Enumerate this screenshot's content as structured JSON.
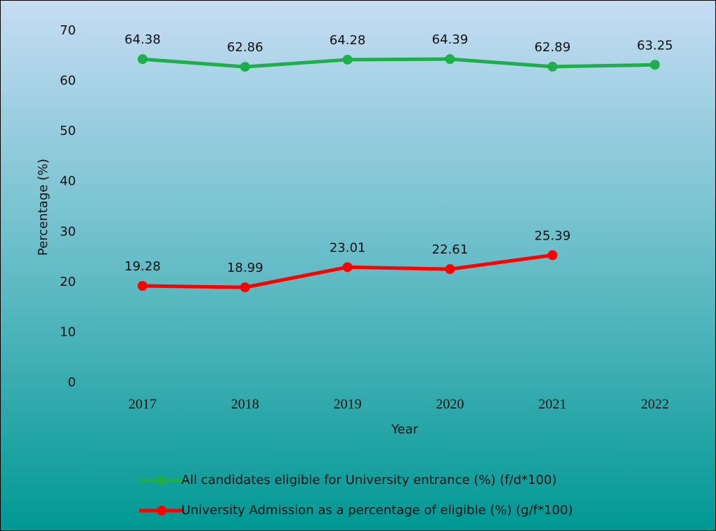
{
  "chart_data": {
    "type": "line",
    "categories": [
      "2017",
      "2018",
      "2019",
      "2020",
      "2021",
      "2022"
    ],
    "series": [
      {
        "name": "All candidates eligible for University entrance (%) (f/d*100)",
        "color": "#1fae4b",
        "values": [
          64.38,
          62.86,
          64.28,
          64.39,
          62.89,
          63.25
        ]
      },
      {
        "name": "University Admission as a percentage of eligible (%) (g/f*100)",
        "color": "#ff0000",
        "values": [
          19.28,
          18.99,
          23.01,
          22.61,
          25.39,
          null
        ]
      }
    ],
    "x_label": "Year",
    "y_label": "Percentage (%)",
    "ylim": [
      0,
      70
    ],
    "yticks": [
      0,
      10,
      20,
      30,
      40,
      50,
      60,
      70
    ],
    "grid": false,
    "legend": "bottom"
  }
}
